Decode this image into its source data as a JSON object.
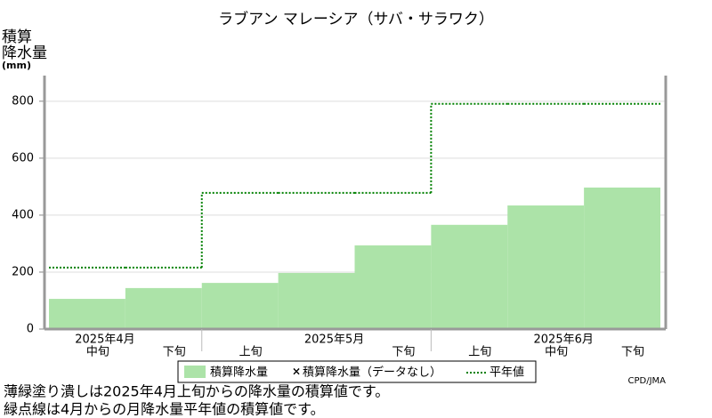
{
  "chart_data": {
    "type": "bar",
    "title": "ラブアン マレーシア（サバ・サラワク）",
    "ylabel": [
      "積算",
      "降水量",
      "(mm)"
    ],
    "categories": [
      "中旬",
      "下旬",
      "上旬",
      null,
      "下旬",
      "上旬",
      "中旬",
      "下旬"
    ],
    "month_labels": [
      "2025年4月",
      "2025年5月",
      "2025年6月"
    ],
    "series": [
      {
        "name": "積算降水量",
        "color": "#ace3a8",
        "values": [
          106,
          144,
          162,
          197,
          294,
          366,
          434,
          497
        ]
      },
      {
        "name": "平年値",
        "color": "#008000",
        "values": [
          216,
          216,
          478,
          478,
          478,
          791,
          791,
          791
        ]
      }
    ],
    "nodata_label": "積算降水量（データなし）",
    "ylim": [
      0,
      890
    ],
    "yticks": [
      0,
      200,
      400,
      600,
      800
    ],
    "grid": true,
    "credit": "CPD/JMA",
    "notes": [
      "薄緑塗り潰しは2025年4月上旬からの降水量の積算値です。",
      "緑点線は4月からの月降水量平年値の積算値です。"
    ]
  }
}
